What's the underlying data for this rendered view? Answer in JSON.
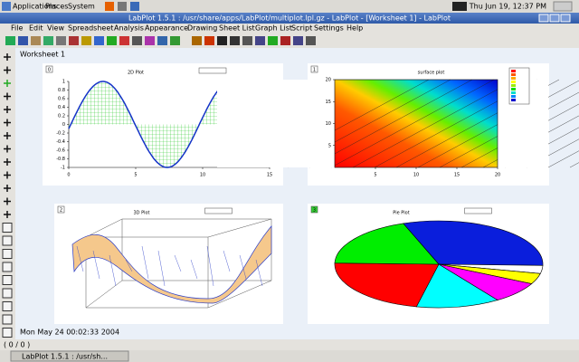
{
  "panel": {
    "menus": [
      "Applications",
      "Places",
      "System"
    ],
    "clock": "Thu Jun 19, 12:37 PM"
  },
  "window": {
    "title": "LabPlot 1.5.1 : /usr/share/apps/LabPlot/multiplot.lpl.gz - LabPlot - [Worksheet 1] - LabPlot",
    "menu": [
      "File",
      "Edit",
      "View",
      "Spreadsheet",
      "Analysis",
      "Appearance",
      "Drawing",
      "Sheet List",
      "Graph List",
      "Script",
      "Settings",
      "Help"
    ],
    "worksheet": "Worksheet 1",
    "timestamp": "Mon May 24 00:02:33 2004",
    "status": "( 0 / 0 )"
  },
  "plots": [
    {
      "index": "0",
      "title": "2D Plot",
      "xlim": [
        0,
        15
      ],
      "ylim": [
        -1,
        1
      ],
      "xticks": [
        0,
        5,
        10,
        15
      ],
      "yticks": [
        1,
        0.8,
        0.6,
        0.4,
        0.2,
        0,
        -0.2,
        -0.4,
        -0.6,
        -0.8,
        -1
      ]
    },
    {
      "index": "1",
      "title": "surface plot",
      "xlim": [
        0,
        20
      ],
      "ylim": [
        0,
        20
      ],
      "xticks": [
        5,
        10,
        15,
        20
      ],
      "yticks": [
        5,
        10,
        15,
        20
      ]
    },
    {
      "index": "2",
      "title": "3D Plot"
    },
    {
      "index": "3",
      "title": "Pie Plot",
      "values": [
        31,
        3,
        4,
        8,
        13,
        22,
        19
      ],
      "colors": [
        "#0a1edc",
        "#ffffff",
        "#ffff00",
        "#ff00ff",
        "#00ffff",
        "#ff0000",
        "#00ee00"
      ]
    }
  ],
  "taskbar": {
    "button": "LabPlot 1.5.1 : /usr/sh..."
  }
}
